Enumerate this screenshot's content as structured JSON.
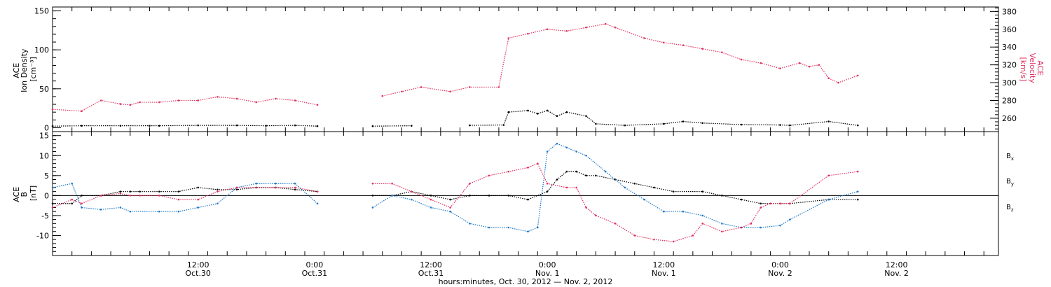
{
  "chart_data": {
    "type": "scatter",
    "x_axis": {
      "title": "hours:minutes, Oct. 30, 2012 — Nov. 2, 2012",
      "range_hours": [
        -3,
        94.5
      ],
      "ticks": [
        {
          "hour": 12,
          "time": "12:00",
          "date": "Oct.30"
        },
        {
          "hour": 24,
          "time": "0:00",
          "date": "Oct.31"
        },
        {
          "hour": 36,
          "time": "12:00",
          "date": "Oct.31"
        },
        {
          "hour": 48,
          "time": "0:00",
          "date": "Nov. 1"
        },
        {
          "hour": 60,
          "time": "12:00",
          "date": "Nov. 1"
        },
        {
          "hour": 72,
          "time": "0:00",
          "date": "Nov. 2"
        },
        {
          "hour": 84,
          "time": "12:00",
          "date": "Nov. 2"
        }
      ]
    },
    "panels": [
      {
        "name": "top",
        "left_axis": {
          "label_lines": [
            "ACE",
            "Ion Density",
            "[cm⁻³]"
          ],
          "range": [
            -5,
            155
          ],
          "ticks": [
            0,
            50,
            100,
            150
          ]
        },
        "right_axis": {
          "label_lines": [
            "ACE",
            "Velocity",
            "[km/s]"
          ],
          "range": [
            245,
            385
          ],
          "ticks": [
            260,
            280,
            300,
            320,
            340,
            360,
            380
          ],
          "color": "#e0305e"
        },
        "series": [
          {
            "role": "density",
            "axis": "left",
            "color": "#000000",
            "points": [
              [
                -3,
                2
              ],
              [
                0,
                2.5
              ],
              [
                4,
                2.5
              ],
              [
                7,
                2.5
              ],
              [
                8,
                2.5
              ],
              [
                12,
                3
              ],
              [
                16,
                3
              ],
              [
                19,
                2.5
              ],
              [
                22,
                3
              ],
              [
                24.3,
                2
              ],
              [
                30,
                2
              ],
              [
                34,
                2.5
              ],
              [
                40,
                3
              ],
              [
                43.5,
                3.5
              ],
              [
                44,
                20
              ],
              [
                46,
                22
              ],
              [
                47,
                18
              ],
              [
                48,
                22
              ],
              [
                49,
                15
              ],
              [
                50,
                20
              ],
              [
                52,
                15
              ],
              [
                53,
                5
              ],
              [
                56,
                3
              ],
              [
                60,
                5
              ],
              [
                62,
                8
              ],
              [
                64,
                6
              ],
              [
                68,
                4
              ],
              [
                72,
                3.5
              ],
              [
                73,
                3
              ],
              [
                77,
                8
              ],
              [
                80,
                3
              ]
            ]
          },
          {
            "role": "velocity",
            "axis": "right",
            "color": "#e0305e",
            "points": [
              [
                -3,
                270
              ],
              [
                0,
                268
              ],
              [
                2,
                280
              ],
              [
                4,
                276
              ],
              [
                5,
                275
              ],
              [
                6,
                278
              ],
              [
                8,
                278
              ],
              [
                10,
                280
              ],
              [
                12,
                280
              ],
              [
                14,
                284
              ],
              [
                16,
                282
              ],
              [
                18,
                278
              ],
              [
                20,
                282
              ],
              [
                22,
                280
              ],
              [
                24.3,
                275
              ],
              [
                31,
                285
              ],
              [
                33,
                290
              ],
              [
                35,
                295
              ],
              [
                38,
                290
              ],
              [
                40,
                295
              ],
              [
                43,
                295
              ],
              [
                44,
                350
              ],
              [
                46,
                355
              ],
              [
                48,
                360
              ],
              [
                50,
                358
              ],
              [
                52,
                362
              ],
              [
                54,
                366
              ],
              [
                55,
                362
              ],
              [
                58,
                350
              ],
              [
                60,
                345
              ],
              [
                62,
                342
              ],
              [
                64,
                338
              ],
              [
                66,
                334
              ],
              [
                68,
                326
              ],
              [
                70,
                322
              ],
              [
                72,
                316
              ],
              [
                74,
                322
              ],
              [
                75,
                318
              ],
              [
                76,
                320
              ],
              [
                77,
                305
              ],
              [
                78,
                300
              ],
              [
                80,
                308
              ]
            ]
          }
        ]
      },
      {
        "name": "bottom",
        "left_axis": {
          "label_lines": [
            "ACE",
            "B",
            "[nT]"
          ],
          "range": [
            -15,
            16
          ],
          "ticks": [
            -10,
            -5,
            0,
            5,
            10,
            15
          ]
        },
        "zero_line": 0,
        "series": [
          {
            "name": "Bx",
            "color": "#000000",
            "points": [
              [
                -3,
                -2
              ],
              [
                -1,
                -2
              ],
              [
                0,
                0
              ],
              [
                2,
                0
              ],
              [
                4,
                1
              ],
              [
                5,
                1
              ],
              [
                6,
                1
              ],
              [
                8,
                1
              ],
              [
                10,
                1
              ],
              [
                12,
                2
              ],
              [
                14,
                1.5
              ],
              [
                16,
                1.5
              ],
              [
                18,
                2
              ],
              [
                20,
                2
              ],
              [
                22,
                1.5
              ],
              [
                24.3,
                1
              ],
              [
                30,
                0
              ],
              [
                32,
                0
              ],
              [
                34,
                1
              ],
              [
                36,
                0
              ],
              [
                38,
                -1
              ],
              [
                40,
                0
              ],
              [
                42,
                0
              ],
              [
                44,
                0
              ],
              [
                46,
                -1
              ],
              [
                48,
                1
              ],
              [
                49,
                4
              ],
              [
                50,
                6
              ],
              [
                51,
                6
              ],
              [
                52,
                5
              ],
              [
                53,
                5
              ],
              [
                55,
                4
              ],
              [
                57,
                3
              ],
              [
                59,
                2
              ],
              [
                61,
                1
              ],
              [
                64,
                1
              ],
              [
                66,
                0
              ],
              [
                68,
                -1
              ],
              [
                70,
                -2
              ],
              [
                72,
                -2
              ],
              [
                73,
                -2
              ],
              [
                77,
                -1
              ],
              [
                80,
                -1
              ]
            ]
          },
          {
            "name": "By",
            "color": "#1e78c8",
            "points": [
              [
                -3,
                2
              ],
              [
                -1,
                3
              ],
              [
                0,
                -3
              ],
              [
                2,
                -3.5
              ],
              [
                4,
                -3
              ],
              [
                5,
                -4
              ],
              [
                8,
                -4
              ],
              [
                10,
                -4
              ],
              [
                12,
                -3
              ],
              [
                14,
                -2
              ],
              [
                16,
                2
              ],
              [
                18,
                3
              ],
              [
                20,
                3
              ],
              [
                22,
                3
              ],
              [
                24.3,
                -2
              ],
              [
                30,
                -3
              ],
              [
                32,
                0
              ],
              [
                34,
                -1
              ],
              [
                36,
                -3
              ],
              [
                38,
                -4
              ],
              [
                40,
                -7
              ],
              [
                42,
                -8
              ],
              [
                44,
                -8
              ],
              [
                46,
                -9
              ],
              [
                47,
                -8
              ],
              [
                48,
                11
              ],
              [
                49,
                13
              ],
              [
                50,
                12
              ],
              [
                51,
                11
              ],
              [
                52,
                10
              ],
              [
                54,
                6
              ],
              [
                56,
                2
              ],
              [
                58,
                -1
              ],
              [
                60,
                -4
              ],
              [
                62,
                -4
              ],
              [
                64,
                -5
              ],
              [
                66,
                -7
              ],
              [
                68,
                -8
              ],
              [
                70,
                -8
              ],
              [
                72,
                -7.5
              ],
              [
                73,
                -6
              ],
              [
                77,
                -1
              ],
              [
                80,
                1
              ]
            ]
          },
          {
            "name": "Bz",
            "color": "#e0305e",
            "points": [
              [
                -3,
                -3
              ],
              [
                -1,
                -1
              ],
              [
                0,
                -2
              ],
              [
                2,
                0
              ],
              [
                4,
                0.5
              ],
              [
                5,
                0
              ],
              [
                6,
                0
              ],
              [
                8,
                0
              ],
              [
                10,
                -1
              ],
              [
                12,
                -1
              ],
              [
                14,
                1
              ],
              [
                16,
                2
              ],
              [
                18,
                2
              ],
              [
                20,
                2
              ],
              [
                22,
                2
              ],
              [
                24.3,
                1
              ],
              [
                30,
                3
              ],
              [
                32,
                3
              ],
              [
                34,
                1
              ],
              [
                36,
                -1
              ],
              [
                38,
                -3
              ],
              [
                40,
                3
              ],
              [
                42,
                5
              ],
              [
                44,
                6
              ],
              [
                46,
                7
              ],
              [
                47,
                8
              ],
              [
                48,
                3
              ],
              [
                50,
                2
              ],
              [
                51,
                2
              ],
              [
                52,
                -3
              ],
              [
                53,
                -5
              ],
              [
                55,
                -7
              ],
              [
                57,
                -10
              ],
              [
                59,
                -11
              ],
              [
                61,
                -11.5
              ],
              [
                63,
                -10
              ],
              [
                64,
                -7
              ],
              [
                66,
                -9
              ],
              [
                68,
                -8
              ],
              [
                69,
                -7
              ],
              [
                70,
                -3
              ],
              [
                71,
                -2
              ],
              [
                72,
                -2
              ],
              [
                73,
                -2
              ],
              [
                77,
                5
              ],
              [
                80,
                6
              ]
            ]
          }
        ]
      }
    ]
  }
}
